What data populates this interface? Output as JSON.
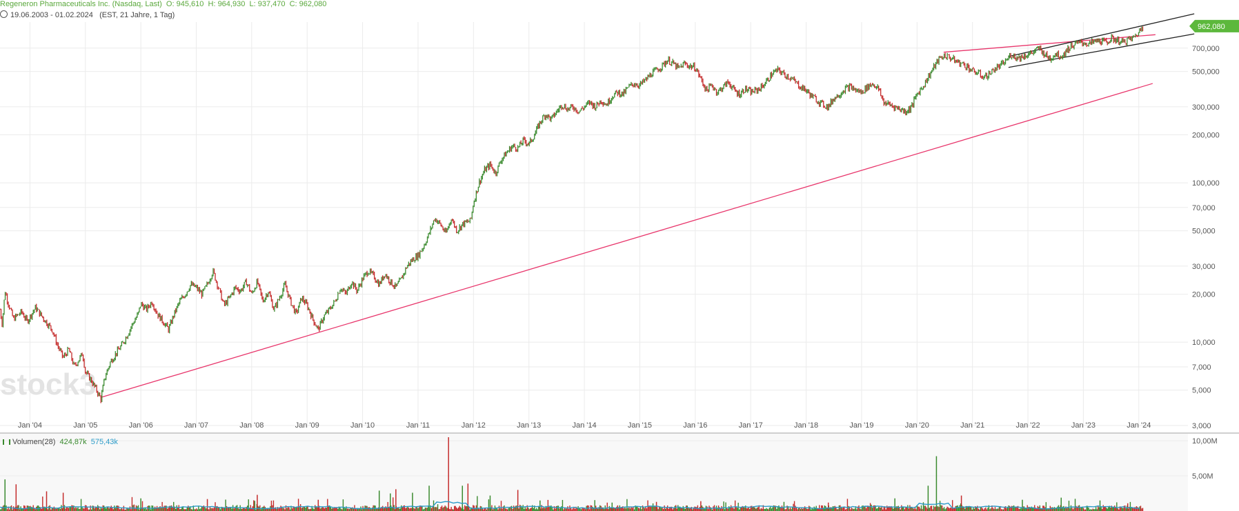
{
  "header": {
    "instrument": "Regeneron Pharmaceuticals Inc. (Nasdaq, Last)",
    "open_label": "O:",
    "open": "945,610",
    "high_label": "H:",
    "high": "964,930",
    "low_label": "L:",
    "low": "937,470",
    "close_label": "C:",
    "close": "962,080",
    "range": "19.06.2003 - 01.02.2024",
    "range_detail": "(EST, 21 Jahre, 1 Tag)"
  },
  "watermark": "stock3",
  "colors": {
    "up": "#3a8a2e",
    "down": "#c42b2b",
    "trendline": "#e8356b",
    "channel": "#222222",
    "price_badge": "#5cb83c",
    "volume_ma": "#2b9bc8",
    "grid": "#ebebeb",
    "header_green": "#5aa83c"
  },
  "volume_legend": {
    "label": "Volumen(28)",
    "value_1": "424,87k",
    "value_2": "575,43k"
  },
  "chart_data": {
    "type": "line",
    "scale": "log",
    "title": "Regeneron Pharmaceuticals Inc. (Nasdaq, Last)",
    "ylim": [
      3000,
      1200000
    ],
    "x_range": [
      2003.46,
      2024.09
    ],
    "x_ticks": [
      "Jan '04",
      "Jan '05",
      "Jan '06",
      "Jan '07",
      "Jan '08",
      "Jan '09",
      "Jan '10",
      "Jan '11",
      "Jan '12",
      "Jan '13",
      "Jan '14",
      "Jan '15",
      "Jan '16",
      "Jan '17",
      "Jan '18",
      "Jan '19",
      "Jan '20",
      "Jan '21",
      "Jan '22",
      "Jan '23",
      "Jan '24"
    ],
    "y_ticks": [
      {
        "value": 3000,
        "label": "3,000"
      },
      {
        "value": 5000,
        "label": "5,000"
      },
      {
        "value": 7000,
        "label": "7,000"
      },
      {
        "value": 10000,
        "label": "10,000"
      },
      {
        "value": 20000,
        "label": "20,000"
      },
      {
        "value": 30000,
        "label": "30,000"
      },
      {
        "value": 50000,
        "label": "50,000"
      },
      {
        "value": 70000,
        "label": "70,000"
      },
      {
        "value": 100000,
        "label": "100,000"
      },
      {
        "value": 200000,
        "label": "200,000"
      },
      {
        "value": 300000,
        "label": "300,000"
      },
      {
        "value": 500000,
        "label": "500,000"
      },
      {
        "value": 700000,
        "label": "700,000"
      }
    ],
    "last_price_label": "962,080",
    "last_price": 962080,
    "price_points": [
      [
        2003.46,
        16000
      ],
      [
        2003.5,
        13000
      ],
      [
        2003.55,
        21000
      ],
      [
        2003.6,
        18000
      ],
      [
        2003.7,
        14000
      ],
      [
        2003.85,
        15500
      ],
      [
        2003.95,
        13500
      ],
      [
        2004.1,
        16500
      ],
      [
        2004.25,
        14000
      ],
      [
        2004.4,
        12000
      ],
      [
        2004.5,
        9500
      ],
      [
        2004.6,
        8000
      ],
      [
        2004.7,
        9000
      ],
      [
        2004.8,
        7000
      ],
      [
        2004.95,
        8500
      ],
      [
        2005.0,
        6500
      ],
      [
        2005.1,
        5800
      ],
      [
        2005.2,
        5000
      ],
      [
        2005.28,
        4400
      ],
      [
        2005.35,
        6000
      ],
      [
        2005.45,
        7500
      ],
      [
        2005.55,
        8500
      ],
      [
        2005.65,
        9500
      ],
      [
        2005.75,
        11000
      ],
      [
        2005.85,
        13000
      ],
      [
        2005.95,
        15000
      ],
      [
        2006.0,
        17500
      ],
      [
        2006.1,
        16000
      ],
      [
        2006.2,
        18000
      ],
      [
        2006.3,
        15000
      ],
      [
        2006.4,
        13500
      ],
      [
        2006.5,
        12000
      ],
      [
        2006.6,
        15000
      ],
      [
        2006.7,
        18000
      ],
      [
        2006.8,
        20000
      ],
      [
        2006.9,
        23000
      ],
      [
        2007.0,
        22000
      ],
      [
        2007.1,
        20000
      ],
      [
        2007.2,
        23000
      ],
      [
        2007.3,
        28000
      ],
      [
        2007.4,
        22000
      ],
      [
        2007.5,
        17000
      ],
      [
        2007.6,
        19000
      ],
      [
        2007.7,
        22000
      ],
      [
        2007.8,
        21000
      ],
      [
        2007.9,
        24000
      ],
      [
        2008.0,
        20000
      ],
      [
        2008.1,
        24000
      ],
      [
        2008.2,
        18000
      ],
      [
        2008.3,
        21000
      ],
      [
        2008.4,
        16000
      ],
      [
        2008.5,
        19000
      ],
      [
        2008.6,
        23000
      ],
      [
        2008.7,
        18000
      ],
      [
        2008.8,
        15000
      ],
      [
        2008.9,
        19000
      ],
      [
        2009.0,
        17000
      ],
      [
        2009.1,
        14000
      ],
      [
        2009.2,
        12000
      ],
      [
        2009.3,
        14500
      ],
      [
        2009.4,
        16000
      ],
      [
        2009.5,
        18000
      ],
      [
        2009.6,
        22000
      ],
      [
        2009.7,
        20000
      ],
      [
        2009.8,
        24000
      ],
      [
        2009.9,
        21000
      ],
      [
        2010.0,
        25000
      ],
      [
        2010.1,
        28000
      ],
      [
        2010.2,
        26000
      ],
      [
        2010.3,
        23000
      ],
      [
        2010.4,
        27000
      ],
      [
        2010.5,
        24000
      ],
      [
        2010.6,
        22000
      ],
      [
        2010.7,
        25000
      ],
      [
        2010.8,
        30000
      ],
      [
        2010.9,
        33000
      ],
      [
        2011.0,
        35000
      ],
      [
        2011.1,
        40000
      ],
      [
        2011.2,
        48000
      ],
      [
        2011.3,
        60000
      ],
      [
        2011.4,
        55000
      ],
      [
        2011.5,
        48000
      ],
      [
        2011.6,
        60000
      ],
      [
        2011.7,
        50000
      ],
      [
        2011.8,
        55000
      ],
      [
        2011.95,
        58000
      ],
      [
        2012.0,
        75000
      ],
      [
        2012.1,
        100000
      ],
      [
        2012.2,
        120000
      ],
      [
        2012.3,
        130000
      ],
      [
        2012.4,
        115000
      ],
      [
        2012.5,
        140000
      ],
      [
        2012.6,
        155000
      ],
      [
        2012.7,
        170000
      ],
      [
        2012.8,
        165000
      ],
      [
        2012.9,
        185000
      ],
      [
        2013.0,
        175000
      ],
      [
        2013.1,
        200000
      ],
      [
        2013.2,
        240000
      ],
      [
        2013.3,
        270000
      ],
      [
        2013.4,
        250000
      ],
      [
        2013.5,
        280000
      ],
      [
        2013.6,
        310000
      ],
      [
        2013.7,
        290000
      ],
      [
        2013.8,
        300000
      ],
      [
        2013.9,
        280000
      ],
      [
        2014.0,
        300000
      ],
      [
        2014.1,
        320000
      ],
      [
        2014.2,
        300000
      ],
      [
        2014.3,
        330000
      ],
      [
        2014.4,
        310000
      ],
      [
        2014.5,
        350000
      ],
      [
        2014.6,
        370000
      ],
      [
        2014.7,
        360000
      ],
      [
        2014.8,
        400000
      ],
      [
        2014.9,
        420000
      ],
      [
        2015.0,
        410000
      ],
      [
        2015.1,
        440000
      ],
      [
        2015.2,
        480000
      ],
      [
        2015.3,
        510000
      ],
      [
        2015.4,
        540000
      ],
      [
        2015.5,
        590000
      ],
      [
        2015.6,
        560000
      ],
      [
        2015.7,
        520000
      ],
      [
        2015.8,
        560000
      ],
      [
        2015.9,
        540000
      ],
      [
        2016.0,
        530000
      ],
      [
        2016.1,
        450000
      ],
      [
        2016.2,
        380000
      ],
      [
        2016.3,
        410000
      ],
      [
        2016.4,
        370000
      ],
      [
        2016.5,
        400000
      ],
      [
        2016.6,
        430000
      ],
      [
        2016.7,
        380000
      ],
      [
        2016.8,
        360000
      ],
      [
        2016.9,
        390000
      ],
      [
        2017.0,
        370000
      ],
      [
        2017.1,
        380000
      ],
      [
        2017.2,
        400000
      ],
      [
        2017.3,
        440000
      ],
      [
        2017.4,
        490000
      ],
      [
        2017.5,
        510000
      ],
      [
        2017.6,
        480000
      ],
      [
        2017.7,
        460000
      ],
      [
        2017.8,
        430000
      ],
      [
        2017.9,
        400000
      ],
      [
        2018.0,
        380000
      ],
      [
        2018.1,
        350000
      ],
      [
        2018.2,
        330000
      ],
      [
        2018.3,
        310000
      ],
      [
        2018.4,
        300000
      ],
      [
        2018.5,
        340000
      ],
      [
        2018.6,
        360000
      ],
      [
        2018.7,
        390000
      ],
      [
        2018.8,
        400000
      ],
      [
        2018.9,
        380000
      ],
      [
        2019.0,
        370000
      ],
      [
        2019.1,
        400000
      ],
      [
        2019.2,
        420000
      ],
      [
        2019.3,
        390000
      ],
      [
        2019.4,
        320000
      ],
      [
        2019.5,
        310000
      ],
      [
        2019.6,
        300000
      ],
      [
        2019.7,
        290000
      ],
      [
        2019.8,
        280000
      ],
      [
        2019.9,
        300000
      ],
      [
        2020.0,
        360000
      ],
      [
        2020.1,
        400000
      ],
      [
        2020.2,
        460000
      ],
      [
        2020.3,
        530000
      ],
      [
        2020.4,
        600000
      ],
      [
        2020.5,
        630000
      ],
      [
        2020.6,
        610000
      ],
      [
        2020.7,
        580000
      ],
      [
        2020.8,
        560000
      ],
      [
        2020.9,
        540000
      ],
      [
        2021.0,
        500000
      ],
      [
        2021.1,
        490000
      ],
      [
        2021.2,
        460000
      ],
      [
        2021.3,
        480000
      ],
      [
        2021.4,
        520000
      ],
      [
        2021.5,
        540000
      ],
      [
        2021.6,
        580000
      ],
      [
        2021.7,
        640000
      ],
      [
        2021.8,
        610000
      ],
      [
        2021.9,
        620000
      ],
      [
        2022.0,
        640000
      ],
      [
        2022.1,
        660000
      ],
      [
        2022.2,
        700000
      ],
      [
        2022.3,
        640000
      ],
      [
        2022.4,
        600000
      ],
      [
        2022.5,
        650000
      ],
      [
        2022.6,
        620000
      ],
      [
        2022.7,
        680000
      ],
      [
        2022.8,
        730000
      ],
      [
        2022.9,
        750000
      ],
      [
        2023.0,
        760000
      ],
      [
        2023.1,
        740000
      ],
      [
        2023.2,
        770000
      ],
      [
        2023.3,
        780000
      ],
      [
        2023.4,
        760000
      ],
      [
        2023.5,
        800000
      ],
      [
        2023.6,
        790000
      ],
      [
        2023.7,
        760000
      ],
      [
        2023.8,
        790000
      ],
      [
        2023.9,
        810000
      ],
      [
        2024.0,
        880000
      ],
      [
        2024.05,
        940000
      ],
      [
        2024.09,
        962080
      ]
    ],
    "trendlines": [
      {
        "name": "long-term-support",
        "color": "#e8356b",
        "points": [
          [
            2005.28,
            4500
          ],
          [
            2024.25,
            420000
          ]
        ]
      },
      {
        "name": "resistance",
        "color": "#e8356b",
        "points": [
          [
            2020.48,
            660000
          ],
          [
            2024.3,
            850000
          ]
        ]
      },
      {
        "name": "channel-upper",
        "color": "#222222",
        "points": [
          [
            2021.65,
            620000
          ],
          [
            2025.0,
            1150000
          ]
        ]
      },
      {
        "name": "channel-lower",
        "color": "#222222",
        "points": [
          [
            2021.65,
            530000
          ],
          [
            2025.0,
            860000
          ]
        ]
      }
    ],
    "volume": {
      "y_ticks": [
        {
          "value": 5000000,
          "label": "5,00M"
        },
        {
          "value": 10000000,
          "label": "10,00M"
        }
      ],
      "ylim": [
        0,
        10500000
      ],
      "spikes": [
        [
          2003.55,
          4500000,
          "up"
        ],
        [
          2003.75,
          3800000,
          "down"
        ],
        [
          2004.3,
          2800000,
          "down"
        ],
        [
          2004.6,
          2600000,
          "down"
        ],
        [
          2006.0,
          1800000,
          "up"
        ],
        [
          2007.2,
          1700000,
          "down"
        ],
        [
          2008.1,
          2300000,
          "down"
        ],
        [
          2009.2,
          1600000,
          "down"
        ],
        [
          2010.3,
          2900000,
          "up"
        ],
        [
          2010.5,
          2500000,
          "up"
        ],
        [
          2010.6,
          3100000,
          "down"
        ],
        [
          2010.9,
          2600000,
          "up"
        ],
        [
          2011.2,
          3600000,
          "up"
        ],
        [
          2011.55,
          11000000,
          "down"
        ],
        [
          2011.8,
          3600000,
          "up"
        ],
        [
          2011.9,
          3900000,
          "down"
        ],
        [
          2012.3,
          2200000,
          "up"
        ],
        [
          2012.8,
          3000000,
          "down"
        ],
        [
          2013.2,
          1500000,
          "up"
        ],
        [
          2014.5,
          1200000,
          "up"
        ],
        [
          2015.3,
          1300000,
          "down"
        ],
        [
          2016.1,
          1400000,
          "down"
        ],
        [
          2017.6,
          1300000,
          "up"
        ],
        [
          2018.4,
          1200000,
          "down"
        ],
        [
          2019.6,
          1800000,
          "up"
        ],
        [
          2020.2,
          3600000,
          "up"
        ],
        [
          2020.35,
          7800000,
          "up"
        ],
        [
          2020.8,
          2200000,
          "down"
        ],
        [
          2021.9,
          1600000,
          "up"
        ],
        [
          2022.6,
          1900000,
          "up"
        ],
        [
          2023.3,
          1500000,
          "up"
        ],
        [
          2023.8,
          1100000,
          "down"
        ]
      ]
    }
  }
}
